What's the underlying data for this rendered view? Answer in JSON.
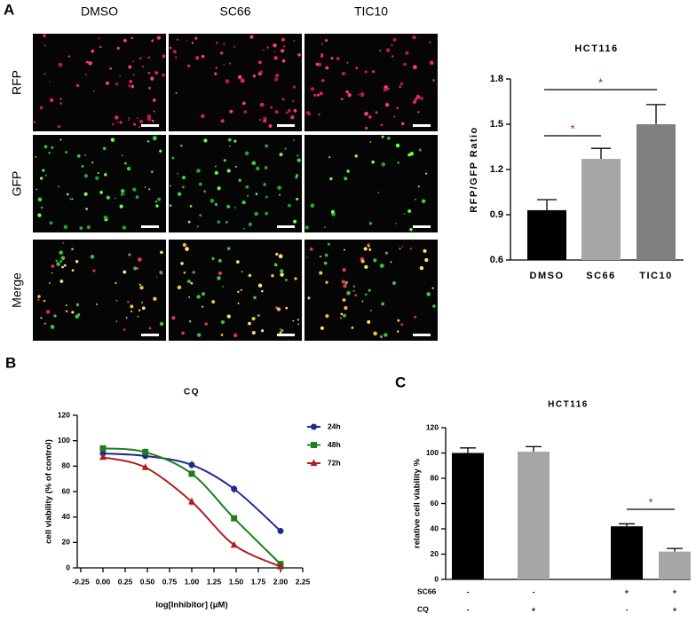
{
  "panel_labels": [
    "A",
    "B",
    "C"
  ],
  "micrographs": {
    "columns": [
      "DMSO",
      "SC66",
      "TIC10"
    ],
    "rows": [
      "RFP",
      "GFP",
      "Merge"
    ]
  },
  "chart_data": [
    {
      "type": "bar",
      "title": "HCT116",
      "y_label": "RFP/GFP Ratio",
      "categories": [
        "DMSO",
        "SC66",
        "TIC10"
      ],
      "values": [
        0.93,
        1.27,
        1.5
      ],
      "errors": [
        0.07,
        0.07,
        0.13
      ],
      "colors": [
        "#000000",
        "#a6a6a6",
        "#808080"
      ],
      "annotation_color": "#b0203a",
      "annotations": [
        "*",
        "*"
      ],
      "ylim": [
        0.6,
        1.8
      ],
      "yticks": [
        0.6,
        0.9,
        1.2,
        1.5,
        1.8
      ]
    },
    {
      "type": "line",
      "title": "CQ",
      "x_label": "log[Inhibitor] (μM)",
      "y_label": "cell viability (% of control)",
      "x": [
        0,
        0.477,
        1,
        1.477,
        2
      ],
      "series": [
        {
          "name": "24h",
          "color": "#1f2a8c",
          "marker": "circle",
          "values": [
            90,
            88,
            81,
            62,
            29
          ],
          "errors": [
            2,
            2,
            3,
            3,
            1
          ]
        },
        {
          "name": "48h",
          "color": "#1e7d1e",
          "marker": "square",
          "values": [
            94,
            91,
            74,
            39,
            3
          ],
          "errors": [
            2,
            3,
            2,
            1,
            1
          ]
        },
        {
          "name": "72h",
          "color": "#b01c1c",
          "marker": "triangle",
          "values": [
            87,
            79,
            52,
            18,
            1
          ],
          "errors": [
            1,
            1,
            3,
            1,
            1
          ]
        }
      ],
      "xlim": [
        -0.25,
        2.25
      ],
      "xticks": [
        -0.25,
        {
          "value": 0,
          "label": "0.00"
        },
        0.25,
        {
          "value": 0.5,
          "label": "0.50"
        },
        0.75,
        {
          "value": 1,
          "label": "1.00"
        },
        1.25,
        {
          "value": 1.5,
          "label": "1.50"
        },
        1.75,
        {
          "value": 2,
          "label": "2.00"
        },
        2.25
      ],
      "ylim": [
        0,
        120
      ],
      "yticks": [
        0,
        20,
        40,
        60,
        80,
        100,
        120
      ],
      "legend": "right"
    },
    {
      "type": "bar",
      "title": "HCT116",
      "y_label": "relative cell viability %",
      "values": [
        100,
        101,
        42,
        22
      ],
      "errors": [
        4,
        4,
        2,
        2.5
      ],
      "colors": [
        "#000000",
        "#a6a6a6",
        "#000000",
        "#a6a6a6"
      ],
      "annotation_color": "#b0203a",
      "annotations": [
        "*"
      ],
      "conditions": [
        {
          "name": "SC66",
          "values": [
            "-",
            "-",
            "+",
            "+"
          ]
        },
        {
          "name": "CQ",
          "values": [
            "-",
            "+",
            "-",
            "+"
          ]
        }
      ],
      "ylim": [
        0,
        120
      ],
      "yticks": [
        0,
        20,
        40,
        60,
        80,
        100,
        120
      ]
    }
  ]
}
